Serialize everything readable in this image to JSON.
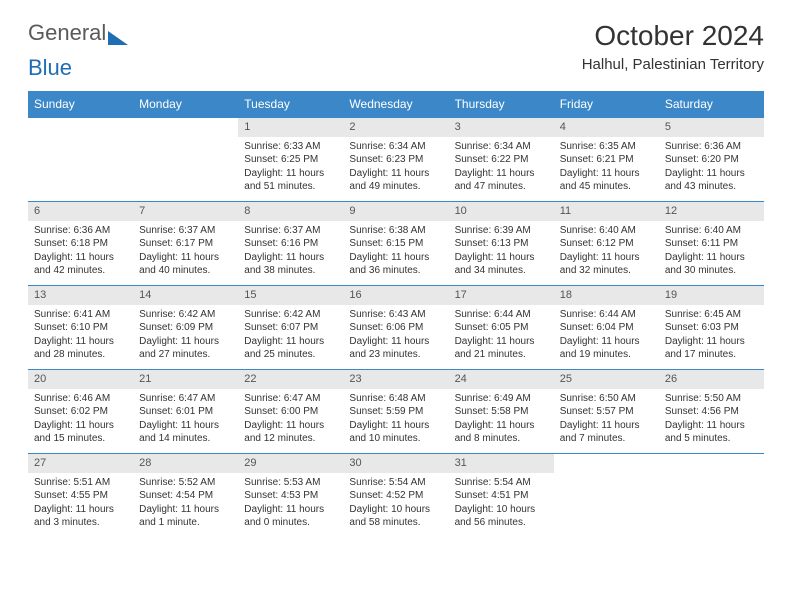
{
  "logo": {
    "word1": "General",
    "word2": "Blue"
  },
  "title": "October 2024",
  "subtitle": "Halhul, Palestinian Territory",
  "colors": {
    "header_bg": "#3b87c8",
    "header_text": "#ffffff",
    "daynum_bg": "#e8e8e8",
    "border": "#3b87c8",
    "text": "#333333",
    "logo_gray": "#5a5a5a",
    "logo_blue": "#1f6db3"
  },
  "day_headers": [
    "Sunday",
    "Monday",
    "Tuesday",
    "Wednesday",
    "Thursday",
    "Friday",
    "Saturday"
  ],
  "weeks": [
    [
      null,
      null,
      {
        "n": "1",
        "sr": "Sunrise: 6:33 AM",
        "ss": "Sunset: 6:25 PM",
        "dl": "Daylight: 11 hours and 51 minutes."
      },
      {
        "n": "2",
        "sr": "Sunrise: 6:34 AM",
        "ss": "Sunset: 6:23 PM",
        "dl": "Daylight: 11 hours and 49 minutes."
      },
      {
        "n": "3",
        "sr": "Sunrise: 6:34 AM",
        "ss": "Sunset: 6:22 PM",
        "dl": "Daylight: 11 hours and 47 minutes."
      },
      {
        "n": "4",
        "sr": "Sunrise: 6:35 AM",
        "ss": "Sunset: 6:21 PM",
        "dl": "Daylight: 11 hours and 45 minutes."
      },
      {
        "n": "5",
        "sr": "Sunrise: 6:36 AM",
        "ss": "Sunset: 6:20 PM",
        "dl": "Daylight: 11 hours and 43 minutes."
      }
    ],
    [
      {
        "n": "6",
        "sr": "Sunrise: 6:36 AM",
        "ss": "Sunset: 6:18 PM",
        "dl": "Daylight: 11 hours and 42 minutes."
      },
      {
        "n": "7",
        "sr": "Sunrise: 6:37 AM",
        "ss": "Sunset: 6:17 PM",
        "dl": "Daylight: 11 hours and 40 minutes."
      },
      {
        "n": "8",
        "sr": "Sunrise: 6:37 AM",
        "ss": "Sunset: 6:16 PM",
        "dl": "Daylight: 11 hours and 38 minutes."
      },
      {
        "n": "9",
        "sr": "Sunrise: 6:38 AM",
        "ss": "Sunset: 6:15 PM",
        "dl": "Daylight: 11 hours and 36 minutes."
      },
      {
        "n": "10",
        "sr": "Sunrise: 6:39 AM",
        "ss": "Sunset: 6:13 PM",
        "dl": "Daylight: 11 hours and 34 minutes."
      },
      {
        "n": "11",
        "sr": "Sunrise: 6:40 AM",
        "ss": "Sunset: 6:12 PM",
        "dl": "Daylight: 11 hours and 32 minutes."
      },
      {
        "n": "12",
        "sr": "Sunrise: 6:40 AM",
        "ss": "Sunset: 6:11 PM",
        "dl": "Daylight: 11 hours and 30 minutes."
      }
    ],
    [
      {
        "n": "13",
        "sr": "Sunrise: 6:41 AM",
        "ss": "Sunset: 6:10 PM",
        "dl": "Daylight: 11 hours and 28 minutes."
      },
      {
        "n": "14",
        "sr": "Sunrise: 6:42 AM",
        "ss": "Sunset: 6:09 PM",
        "dl": "Daylight: 11 hours and 27 minutes."
      },
      {
        "n": "15",
        "sr": "Sunrise: 6:42 AM",
        "ss": "Sunset: 6:07 PM",
        "dl": "Daylight: 11 hours and 25 minutes."
      },
      {
        "n": "16",
        "sr": "Sunrise: 6:43 AM",
        "ss": "Sunset: 6:06 PM",
        "dl": "Daylight: 11 hours and 23 minutes."
      },
      {
        "n": "17",
        "sr": "Sunrise: 6:44 AM",
        "ss": "Sunset: 6:05 PM",
        "dl": "Daylight: 11 hours and 21 minutes."
      },
      {
        "n": "18",
        "sr": "Sunrise: 6:44 AM",
        "ss": "Sunset: 6:04 PM",
        "dl": "Daylight: 11 hours and 19 minutes."
      },
      {
        "n": "19",
        "sr": "Sunrise: 6:45 AM",
        "ss": "Sunset: 6:03 PM",
        "dl": "Daylight: 11 hours and 17 minutes."
      }
    ],
    [
      {
        "n": "20",
        "sr": "Sunrise: 6:46 AM",
        "ss": "Sunset: 6:02 PM",
        "dl": "Daylight: 11 hours and 15 minutes."
      },
      {
        "n": "21",
        "sr": "Sunrise: 6:47 AM",
        "ss": "Sunset: 6:01 PM",
        "dl": "Daylight: 11 hours and 14 minutes."
      },
      {
        "n": "22",
        "sr": "Sunrise: 6:47 AM",
        "ss": "Sunset: 6:00 PM",
        "dl": "Daylight: 11 hours and 12 minutes."
      },
      {
        "n": "23",
        "sr": "Sunrise: 6:48 AM",
        "ss": "Sunset: 5:59 PM",
        "dl": "Daylight: 11 hours and 10 minutes."
      },
      {
        "n": "24",
        "sr": "Sunrise: 6:49 AM",
        "ss": "Sunset: 5:58 PM",
        "dl": "Daylight: 11 hours and 8 minutes."
      },
      {
        "n": "25",
        "sr": "Sunrise: 6:50 AM",
        "ss": "Sunset: 5:57 PM",
        "dl": "Daylight: 11 hours and 7 minutes."
      },
      {
        "n": "26",
        "sr": "Sunrise: 5:50 AM",
        "ss": "Sunset: 4:56 PM",
        "dl": "Daylight: 11 hours and 5 minutes."
      }
    ],
    [
      {
        "n": "27",
        "sr": "Sunrise: 5:51 AM",
        "ss": "Sunset: 4:55 PM",
        "dl": "Daylight: 11 hours and 3 minutes."
      },
      {
        "n": "28",
        "sr": "Sunrise: 5:52 AM",
        "ss": "Sunset: 4:54 PM",
        "dl": "Daylight: 11 hours and 1 minute."
      },
      {
        "n": "29",
        "sr": "Sunrise: 5:53 AM",
        "ss": "Sunset: 4:53 PM",
        "dl": "Daylight: 11 hours and 0 minutes."
      },
      {
        "n": "30",
        "sr": "Sunrise: 5:54 AM",
        "ss": "Sunset: 4:52 PM",
        "dl": "Daylight: 10 hours and 58 minutes."
      },
      {
        "n": "31",
        "sr": "Sunrise: 5:54 AM",
        "ss": "Sunset: 4:51 PM",
        "dl": "Daylight: 10 hours and 56 minutes."
      },
      null,
      null
    ]
  ]
}
